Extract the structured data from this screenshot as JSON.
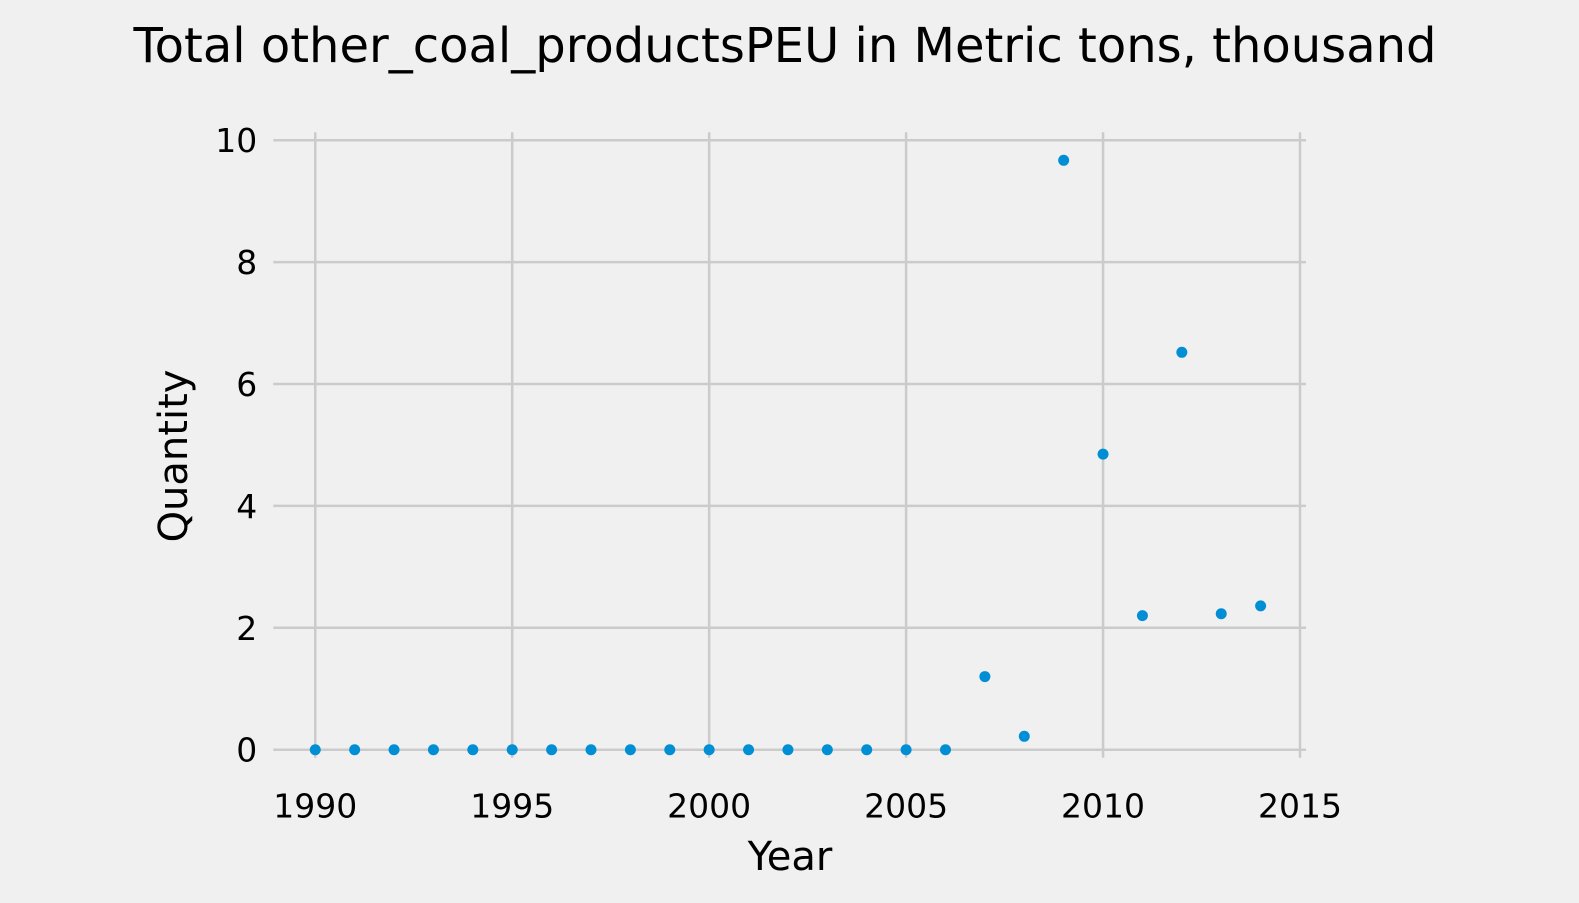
{
  "chart_data": {
    "type": "scatter",
    "title": "Total other_coal_productsPEU in Metric tons,  thousand",
    "xlabel": "Year",
    "ylabel": "Quantity",
    "xlim": [
      1988.8,
      2015
    ],
    "ylim": [
      -0.3,
      10.2
    ],
    "xticks": [
      1990,
      1995,
      2000,
      2005,
      2010,
      2015
    ],
    "yticks": [
      0,
      2,
      4,
      6,
      8,
      10
    ],
    "grid": true,
    "series": [
      {
        "color": "#008fd5",
        "x": [
          1990,
          1991,
          1992,
          1993,
          1994,
          1995,
          1996,
          1997,
          1998,
          1999,
          2000,
          2001,
          2002,
          2003,
          2004,
          2005,
          2006,
          2007,
          2008,
          2009,
          2010,
          2011,
          2012,
          2013,
          2014
        ],
        "y": [
          0,
          0,
          0,
          0,
          0,
          0,
          0,
          0,
          0,
          0,
          0,
          0,
          0,
          0,
          0,
          0,
          0,
          1.2,
          0.22,
          9.67,
          4.85,
          2.2,
          6.52,
          2.23,
          2.36
        ]
      }
    ]
  },
  "colors": {
    "background": "#f0f0f0",
    "grid": "#cbcbcb",
    "marker": "#008fd5"
  }
}
